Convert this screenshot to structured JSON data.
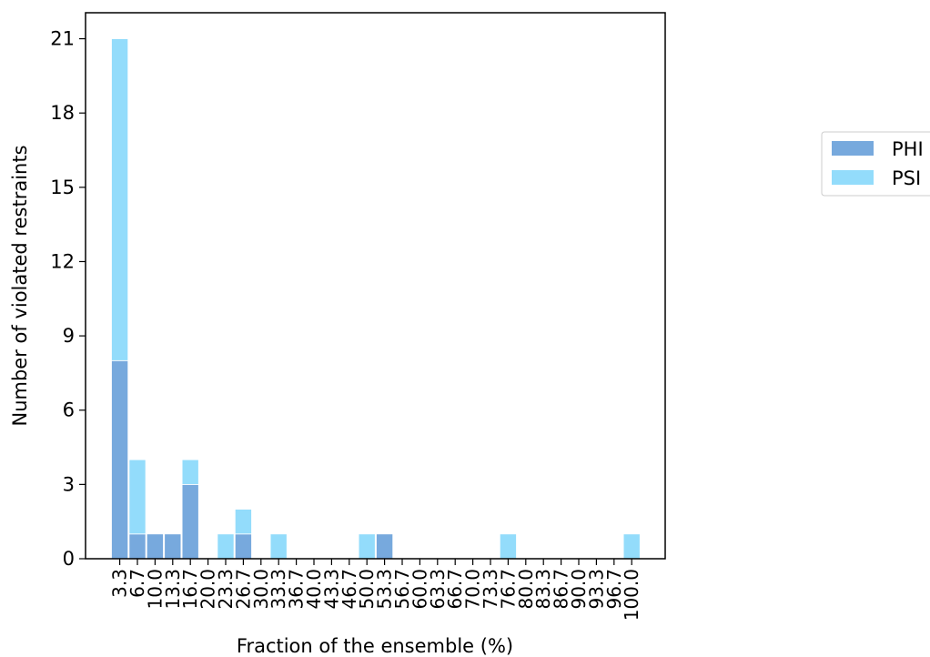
{
  "chart_data": {
    "type": "bar",
    "stacked": true,
    "title": "",
    "xlabel": "Fraction of the ensemble (%)",
    "ylabel": "Number of violated restraints",
    "categories": [
      "3.3",
      "6.7",
      "10.0",
      "13.3",
      "16.7",
      "20.0",
      "23.3",
      "26.7",
      "30.0",
      "33.3",
      "36.7",
      "40.0",
      "43.3",
      "46.7",
      "50.0",
      "53.3",
      "56.7",
      "60.0",
      "63.3",
      "66.7",
      "70.0",
      "73.3",
      "76.7",
      "80.0",
      "83.3",
      "86.7",
      "90.0",
      "93.3",
      "96.7",
      "100.0"
    ],
    "yticks": [
      0,
      3,
      6,
      9,
      12,
      15,
      18,
      21
    ],
    "ylim": [
      0,
      22.05
    ],
    "grid": false,
    "legend_position": "right",
    "series": [
      {
        "name": "PHI",
        "color": "#77a9dd",
        "values": [
          8,
          1,
          1,
          1,
          3,
          0,
          0,
          1,
          0,
          0,
          0,
          0,
          0,
          0,
          0,
          1,
          0,
          0,
          0,
          0,
          0,
          0,
          0,
          0,
          0,
          0,
          0,
          0,
          0,
          0
        ]
      },
      {
        "name": "PSI",
        "color": "#93dcfb",
        "values": [
          13,
          3,
          0,
          0,
          1,
          0,
          1,
          1,
          0,
          1,
          0,
          0,
          0,
          0,
          1,
          0,
          0,
          0,
          0,
          0,
          0,
          0,
          1,
          0,
          0,
          0,
          0,
          0,
          0,
          1
        ]
      }
    ]
  }
}
